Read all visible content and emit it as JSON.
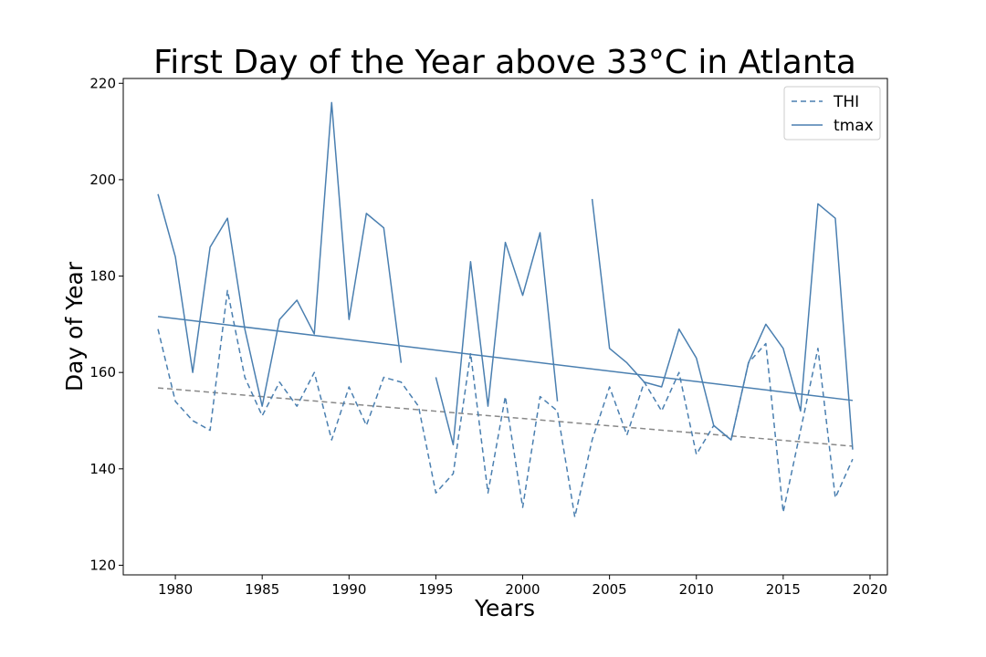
{
  "chart_data": {
    "type": "line",
    "title": "First Day of the Year above 33°C in Atlanta",
    "xlabel": "Years",
    "ylabel": "Day of Year",
    "xlim": [
      1977,
      2021
    ],
    "ylim": [
      118,
      221
    ],
    "xticks": [
      1980,
      1985,
      1990,
      1995,
      2000,
      2005,
      2010,
      2015,
      2020
    ],
    "yticks": [
      120,
      140,
      160,
      180,
      200,
      220
    ],
    "grid": false,
    "legend_position": "top-right",
    "x": [
      1979,
      1980,
      1981,
      1982,
      1983,
      1984,
      1985,
      1986,
      1987,
      1988,
      1989,
      1990,
      1991,
      1992,
      1993,
      1994,
      1995,
      1996,
      1997,
      1998,
      1999,
      2000,
      2001,
      2002,
      2003,
      2004,
      2005,
      2006,
      2007,
      2008,
      2009,
      2010,
      2011,
      2012,
      2013,
      2014,
      2015,
      2016,
      2017,
      2018,
      2019
    ],
    "series": [
      {
        "name": "THI",
        "style": "dashed",
        "color": "#4a7fb0",
        "values": [
          169,
          154,
          150,
          148,
          177,
          159,
          151,
          158,
          153,
          160,
          146,
          157,
          149,
          159,
          158,
          153,
          135,
          139,
          164,
          135,
          155,
          132,
          155,
          152,
          130,
          146,
          157,
          147,
          158,
          152,
          160,
          143,
          149,
          146,
          162,
          166,
          131,
          148,
          165,
          134,
          142
        ]
      },
      {
        "name": "tmax",
        "style": "solid",
        "color": "#4a7fb0",
        "values": [
          197,
          184,
          160,
          186,
          192,
          169,
          153,
          171,
          175,
          168,
          216,
          171,
          193,
          190,
          162,
          null,
          159,
          145,
          183,
          153,
          187,
          176,
          189,
          154,
          null,
          196,
          165,
          162,
          158,
          157,
          169,
          163,
          149,
          146,
          162,
          170,
          165,
          152,
          195,
          192,
          144
        ]
      }
    ],
    "trendlines": [
      {
        "of": "THI",
        "style": "dashed",
        "color": "#888888",
        "x": [
          1979,
          2019
        ],
        "y": [
          156.8,
          144.7
        ]
      },
      {
        "of": "tmax",
        "style": "solid",
        "color": "#4a7fb0",
        "x": [
          1979,
          2019
        ],
        "y": [
          171.6,
          154.2
        ]
      }
    ]
  }
}
